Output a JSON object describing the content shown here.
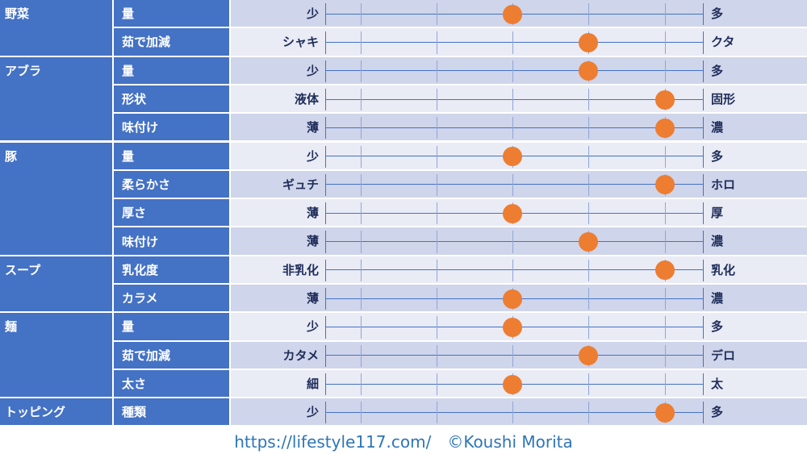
{
  "colors": {
    "category_bg": "#4472c4",
    "row_dark": "#cfd5ea",
    "row_light": "#e9ebf5",
    "dot": "#ed7d31",
    "label_text": "#1f2d5a"
  },
  "rows": [
    {
      "category": "野菜",
      "item": "量",
      "left": "少",
      "right": "多",
      "level": 3
    },
    {
      "category": "",
      "item": "茹で加減",
      "left": "シャキ",
      "right": "クタ",
      "level": 4
    },
    {
      "category": "アブラ",
      "item": "量",
      "left": "少",
      "right": "多",
      "level": 4
    },
    {
      "category": "",
      "item": "形状",
      "left": "液体",
      "right": "固形",
      "level": 5
    },
    {
      "category": "",
      "item": "味付け",
      "left": "薄",
      "right": "濃",
      "level": 5
    },
    {
      "category": "豚",
      "item": "量",
      "left": "少",
      "right": "多",
      "level": 3
    },
    {
      "category": "",
      "item": "柔らかさ",
      "left": "ギュチ",
      "right": "ホロ",
      "level": 5
    },
    {
      "category": "",
      "item": "厚さ",
      "left": "薄",
      "right": "厚",
      "level": 3
    },
    {
      "category": "",
      "item": "味付け",
      "left": "薄",
      "right": "濃",
      "level": 4
    },
    {
      "category": "スープ",
      "item": "乳化度",
      "left": "非乳化",
      "right": "乳化",
      "level": 5
    },
    {
      "category": "",
      "item": "カラメ",
      "left": "薄",
      "right": "濃",
      "level": 3
    },
    {
      "category": "麺",
      "item": "量",
      "left": "少",
      "right": "多",
      "level": 3
    },
    {
      "category": "",
      "item": "茹で加減",
      "left": "カタメ",
      "right": "デロ",
      "level": 4
    },
    {
      "category": "",
      "item": "太さ",
      "left": "細",
      "right": "太",
      "level": 3
    },
    {
      "category": "トッピング",
      "item": "種類",
      "left": "少",
      "right": "多",
      "level": 5
    }
  ],
  "footer": "https://lifestyle117.com/　©Koushi Morita"
}
